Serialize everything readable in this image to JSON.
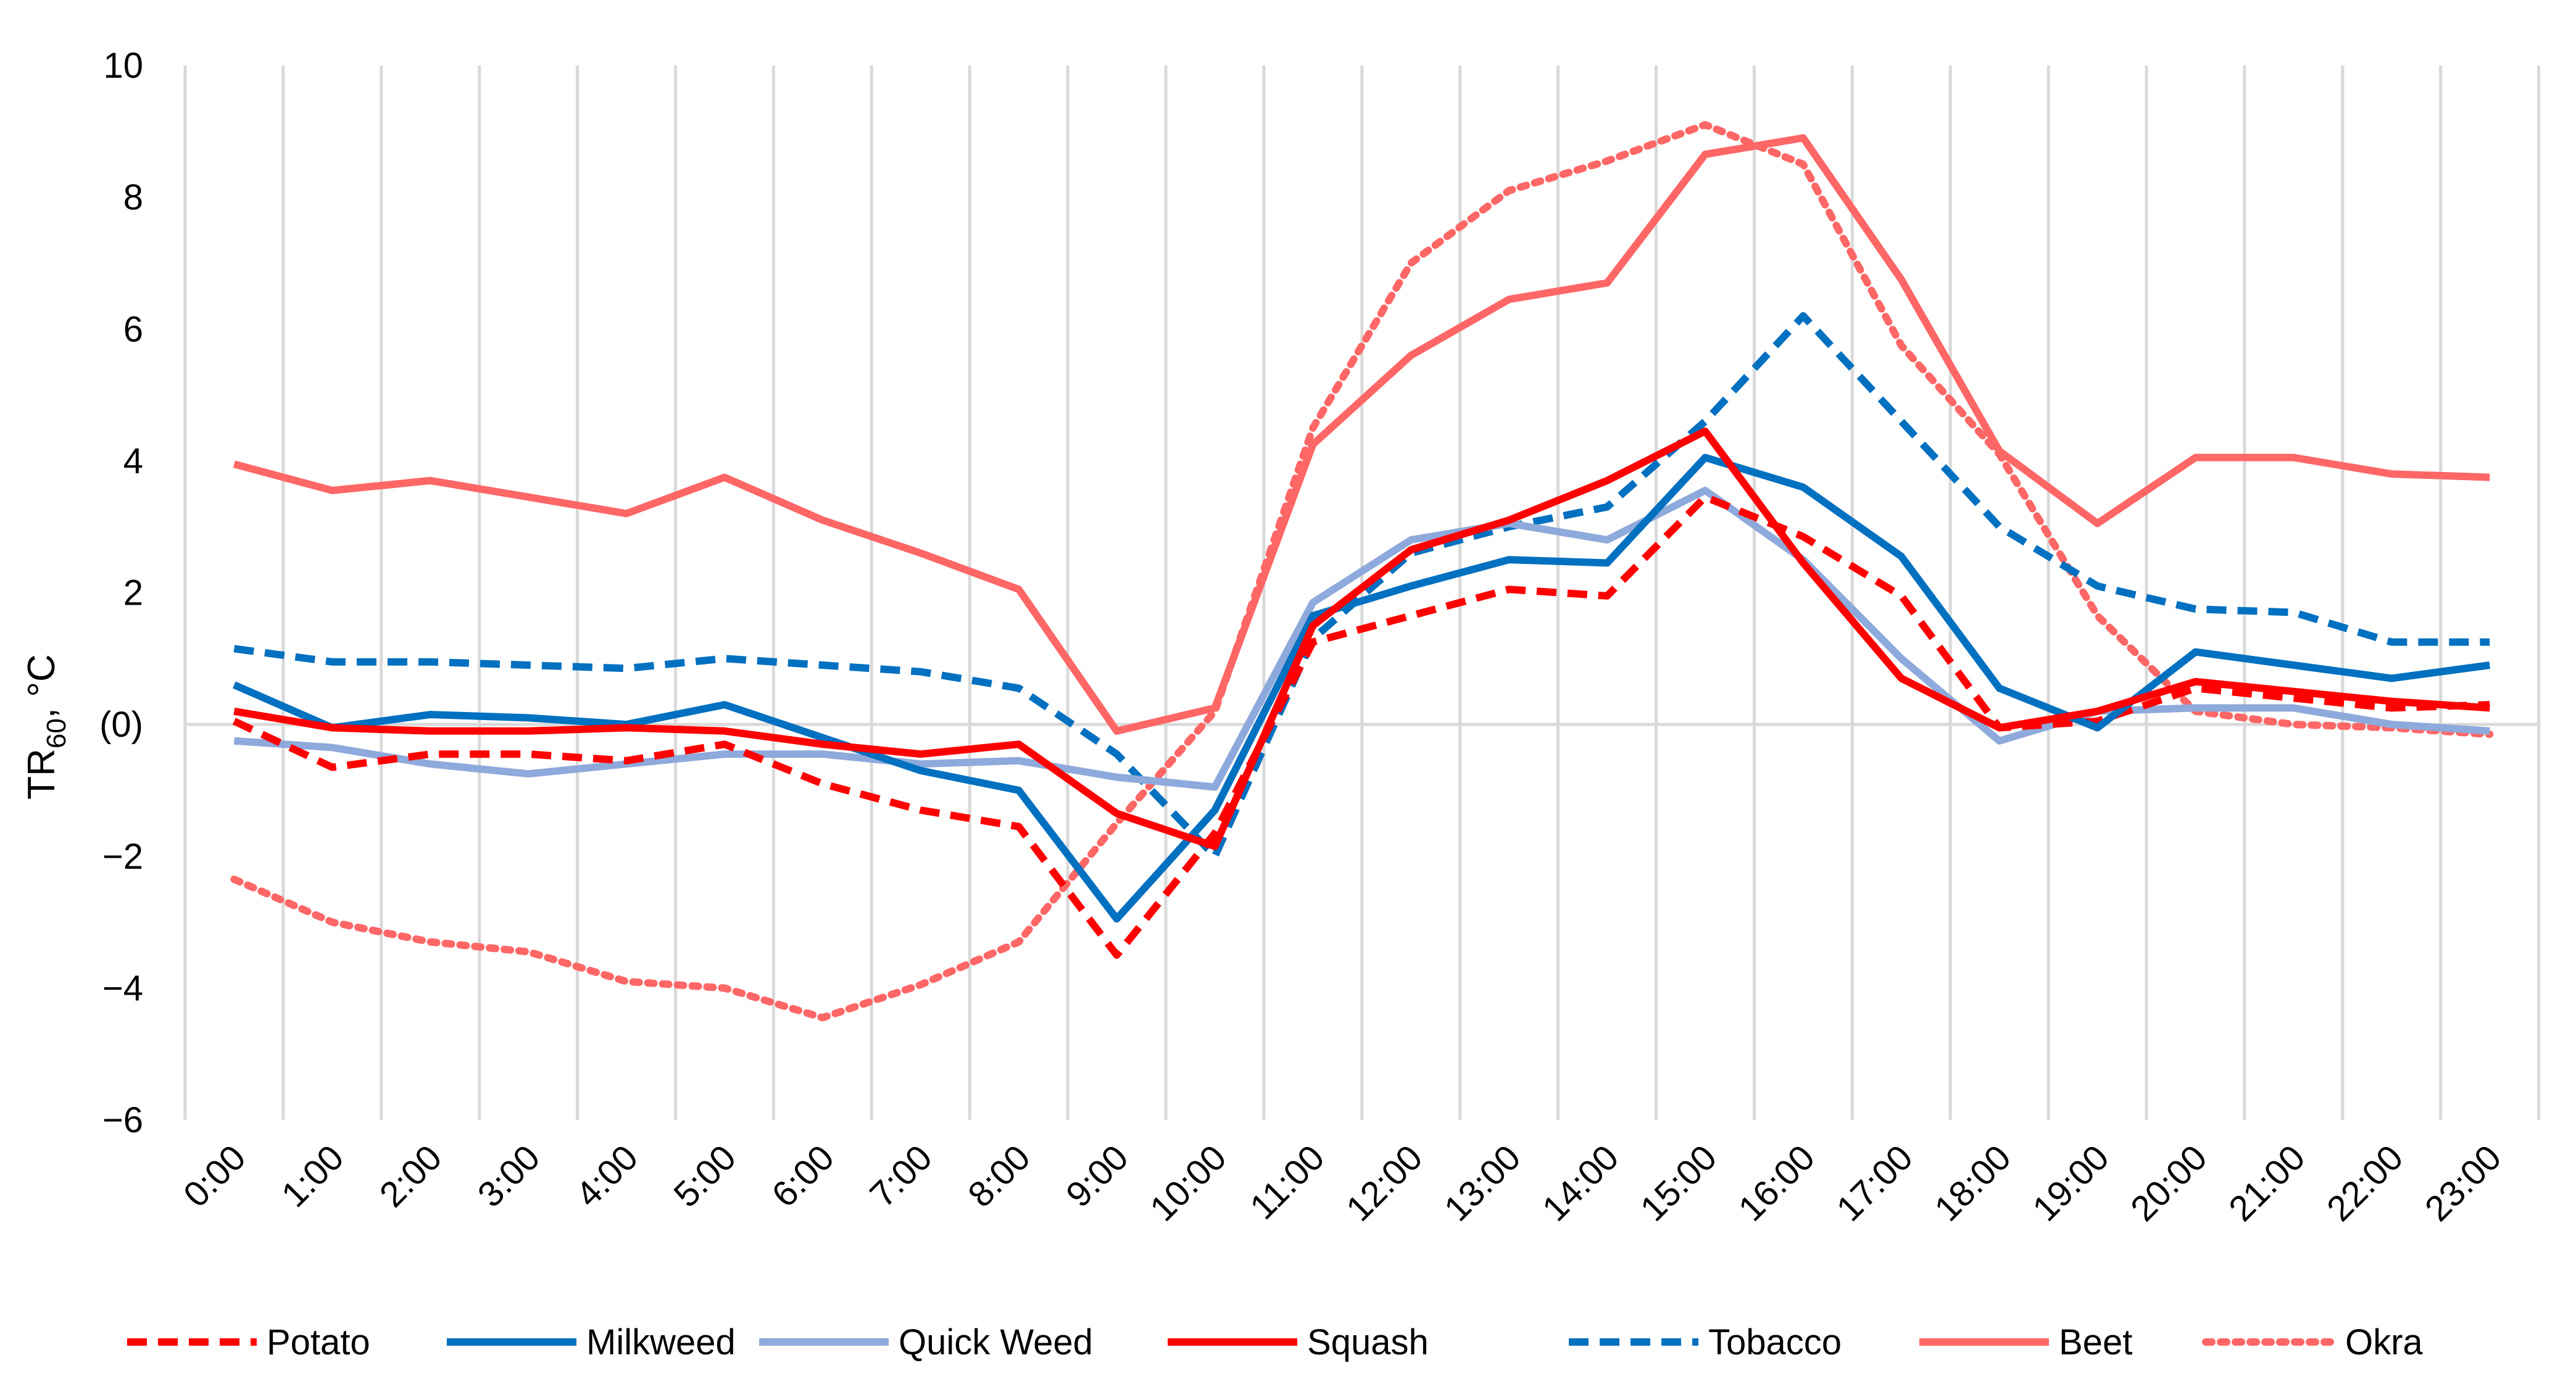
{
  "chart_data": {
    "type": "line",
    "title": "",
    "xlabel": "",
    "ylabel": {
      "base": "TR",
      "subscript": "60",
      "unit": ", °C"
    },
    "ylim": [
      -6,
      10
    ],
    "yticks": [
      {
        "value": 10,
        "label": "10"
      },
      {
        "value": 8,
        "label": "8"
      },
      {
        "value": 6,
        "label": "6"
      },
      {
        "value": 4,
        "label": "4"
      },
      {
        "value": 2,
        "label": "2"
      },
      {
        "value": 0,
        "label": "(0)"
      },
      {
        "value": -2,
        "label": "−2"
      },
      {
        "value": -4,
        "label": "−4"
      },
      {
        "value": -6,
        "label": "−6"
      }
    ],
    "categories": [
      "0:00",
      "1:00",
      "2:00",
      "3:00",
      "4:00",
      "5:00",
      "6:00",
      "7:00",
      "8:00",
      "9:00",
      "10:00",
      "11:00",
      "12:00",
      "13:00",
      "14:00",
      "15:00",
      "16:00",
      "17:00",
      "18:00",
      "19:00",
      "20:00",
      "21:00",
      "22:00",
      "23:00"
    ],
    "x_offset": 0.5,
    "gridlines": "vertical",
    "legend_position": "bottom",
    "series": [
      {
        "name": "Potato",
        "color": "#FF0000",
        "style": "dashed",
        "values": [
          0.05,
          -0.65,
          -0.45,
          -0.45,
          -0.55,
          -0.3,
          -0.9,
          -1.3,
          -1.55,
          -3.5,
          -1.65,
          1.25,
          1.65,
          2.05,
          1.95,
          3.45,
          2.85,
          1.95,
          -0.05,
          0.05,
          0.55,
          0.4,
          0.25,
          0.3
        ]
      },
      {
        "name": "Milkweed",
        "color": "#0070C0",
        "style": "solid",
        "values": [
          0.6,
          -0.05,
          0.15,
          0.1,
          0.0,
          0.3,
          -0.2,
          -0.7,
          -1.0,
          -2.95,
          -1.3,
          1.65,
          2.1,
          2.5,
          2.45,
          4.05,
          3.6,
          2.55,
          0.55,
          -0.05,
          1.1,
          0.9,
          0.7,
          0.9
        ]
      },
      {
        "name": "Quick Weed",
        "color": "#8EA9DB",
        "style": "solid",
        "values": [
          -0.25,
          -0.35,
          -0.6,
          -0.75,
          -0.6,
          -0.45,
          -0.45,
          -0.6,
          -0.55,
          -0.8,
          -0.95,
          1.85,
          2.8,
          3.05,
          2.8,
          3.55,
          2.5,
          1.0,
          -0.25,
          0.2,
          0.25,
          0.25,
          0.0,
          -0.1
        ]
      },
      {
        "name": "Squash",
        "color": "#FF0000",
        "style": "solid",
        "values": [
          0.2,
          -0.05,
          -0.1,
          -0.1,
          -0.05,
          -0.1,
          -0.3,
          -0.45,
          -0.3,
          -1.35,
          -1.85,
          1.5,
          2.65,
          3.1,
          3.7,
          4.45,
          2.45,
          0.7,
          -0.05,
          0.2,
          0.65,
          0.5,
          0.35,
          0.25
        ]
      },
      {
        "name": "Tobacco",
        "color": "#0070C0",
        "style": "dashed",
        "values": [
          1.15,
          0.95,
          0.95,
          0.9,
          0.85,
          1.0,
          0.9,
          0.8,
          0.55,
          -0.45,
          -2.0,
          1.3,
          2.6,
          3.0,
          3.3,
          4.6,
          6.2,
          4.6,
          3.0,
          2.1,
          1.75,
          1.7,
          1.25,
          1.25
        ]
      },
      {
        "name": "Beet",
        "color": "#FF6666",
        "style": "solid",
        "values": [
          3.95,
          3.55,
          3.7,
          3.45,
          3.2,
          3.75,
          3.1,
          2.6,
          2.05,
          -0.1,
          0.25,
          4.25,
          5.6,
          6.45,
          6.7,
          8.65,
          8.9,
          6.75,
          4.15,
          3.05,
          4.05,
          4.05,
          3.8,
          3.75
        ]
      },
      {
        "name": "Okra",
        "color": "#FF6666",
        "style": "dotted",
        "values": [
          -2.35,
          -3.0,
          -3.3,
          -3.45,
          -3.9,
          -4.0,
          -4.45,
          -3.95,
          -3.3,
          -1.5,
          0.2,
          4.5,
          7.0,
          8.1,
          8.55,
          9.1,
          8.5,
          5.75,
          4.1,
          1.65,
          0.2,
          0.0,
          -0.05,
          -0.15
        ]
      }
    ]
  }
}
